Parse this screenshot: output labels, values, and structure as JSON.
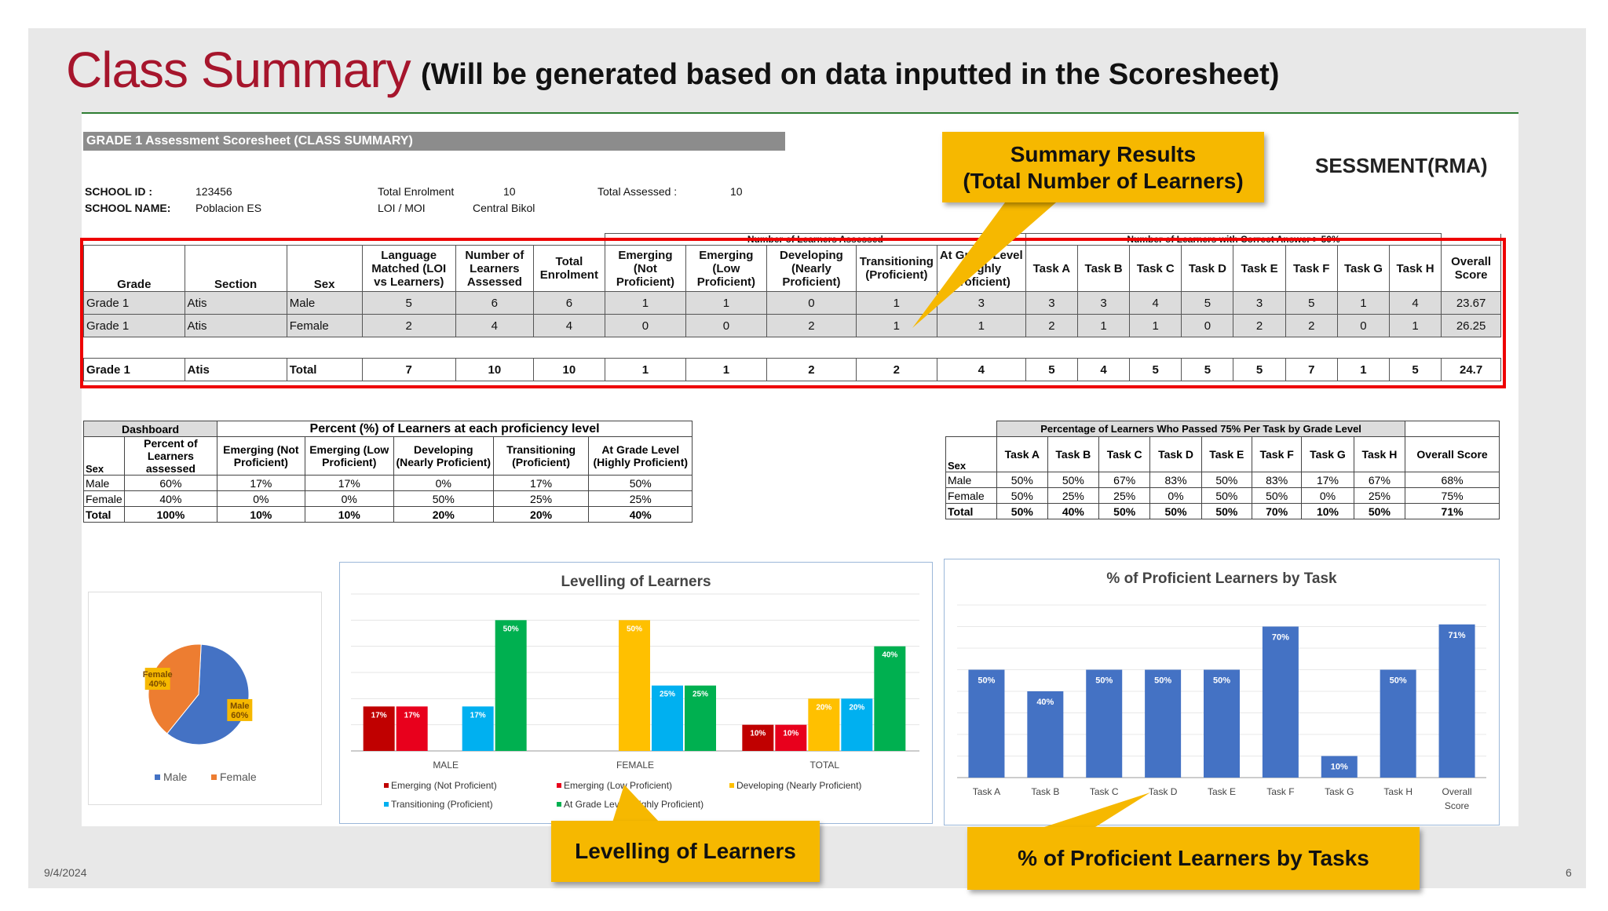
{
  "slide": {
    "title": "Class Summary",
    "subtitle": "(Will be generated based on data inputted in the Scoresheet)",
    "date": "9/4/2024",
    "page": "6"
  },
  "sheet": {
    "header": "GRADE 1 Assessment Scoresheet (CLASS SUMMARY)",
    "rma_title": "SESSMENT(RMA)",
    "school_id_label": "SCHOOL ID :",
    "school_id": "123456",
    "school_name_label": "SCHOOL NAME:",
    "school_name": "Poblacion ES",
    "enrolment_label": "Total Enrolment",
    "enrolment": "10",
    "loi_label": "LOI / MOI",
    "loi": "Central Bikol",
    "assessed_label": "Total Assessed :",
    "assessed": "10"
  },
  "main_table": {
    "group_assessed": "Number of Learners Assessed",
    "group_correct": "Number of Learners with Correct Answer > 50%",
    "headers": [
      "Grade",
      "Section",
      "Sex",
      "Language Matched (LOI vs Learners)",
      "Number of Learners Assessed",
      "Total Enrolment",
      "Emerging (Not Proficient)",
      "Emerging (Low Proficient)",
      "Developing (Nearly Proficient)",
      "Transitioning (Proficient)",
      "At Grade Level (Highly Proficient)",
      "Task A",
      "Task B",
      "Task C",
      "Task D",
      "Task E",
      "Task F",
      "Task G",
      "Task H",
      "Overall Score"
    ],
    "rows": [
      [
        "Grade 1",
        "Atis",
        "Male",
        "5",
        "6",
        "6",
        "1",
        "1",
        "0",
        "1",
        "3",
        "3",
        "3",
        "4",
        "5",
        "3",
        "5",
        "1",
        "4",
        "23.67"
      ],
      [
        "Grade 1",
        "Atis",
        "Female",
        "2",
        "4",
        "4",
        "0",
        "0",
        "2",
        "1",
        "1",
        "2",
        "1",
        "1",
        "0",
        "2",
        "2",
        "0",
        "1",
        "26.25"
      ]
    ],
    "total": [
      "Grade 1",
      "Atis",
      "Total",
      "7",
      "10",
      "10",
      "1",
      "1",
      "2",
      "2",
      "4",
      "5",
      "4",
      "5",
      "5",
      "5",
      "7",
      "1",
      "5",
      "24.7"
    ]
  },
  "dashboard": {
    "title": "Dashboard",
    "group": "Percent (%) of Learners at each proficiency level",
    "headers": [
      "Sex",
      "Percent of Learners assessed",
      "Emerging (Not Proficient)",
      "Emerging (Low Proficient)",
      "Developing (Nearly Proficient)",
      "Transitioning (Proficient)",
      "At Grade Level (Highly Proficient)"
    ],
    "rows": [
      [
        "Male",
        "60%",
        "17%",
        "17%",
        "0%",
        "17%",
        "50%"
      ],
      [
        "Female",
        "40%",
        "0%",
        "0%",
        "50%",
        "25%",
        "25%"
      ],
      [
        "Total",
        "100%",
        "10%",
        "10%",
        "20%",
        "20%",
        "40%"
      ]
    ]
  },
  "task_pct": {
    "title": "Percentage of Learners Who Passed 75% Per Task by Grade Level",
    "headers": [
      "Sex",
      "Task A",
      "Task B",
      "Task C",
      "Task D",
      "Task E",
      "Task F",
      "Task G",
      "Task H",
      "Overall Score"
    ],
    "rows": [
      [
        "Male",
        "50%",
        "50%",
        "67%",
        "83%",
        "50%",
        "83%",
        "17%",
        "67%",
        "68%"
      ],
      [
        "Female",
        "50%",
        "25%",
        "25%",
        "0%",
        "50%",
        "50%",
        "0%",
        "25%",
        "75%"
      ],
      [
        "Total",
        "50%",
        "40%",
        "50%",
        "50%",
        "50%",
        "70%",
        "10%",
        "50%",
        "71%"
      ]
    ]
  },
  "callouts": {
    "summary": "Summary Results\n(Total Number of Learners)",
    "levelling": "Levelling of Learners",
    "proficient": "% of Proficient Learners by Tasks"
  },
  "chart_data": [
    {
      "type": "pie",
      "categories": [
        "Male",
        "Female"
      ],
      "values": [
        60,
        40
      ],
      "labels": [
        "Male\n60%",
        "Female\n40%"
      ],
      "colors": [
        "#4472c4",
        "#ed7d31"
      ],
      "legend": "bottom"
    },
    {
      "type": "bar",
      "title": "Levelling of Learners",
      "categories": [
        "MALE",
        "FEMALE",
        "TOTAL"
      ],
      "series": [
        {
          "name": "Emerging (Not Proficient)",
          "values": [
            17,
            0,
            10
          ],
          "color": "#c00000"
        },
        {
          "name": "Emerging (Low Proficient)",
          "values": [
            17,
            0,
            10
          ],
          "color": "#e8001c"
        },
        {
          "name": "Developing (Nearly Proficient)",
          "values": [
            0,
            50,
            20
          ],
          "color": "#ffc000"
        },
        {
          "name": "Transitioning (Proficient)",
          "values": [
            17,
            25,
            20
          ],
          "color": "#00b0f0"
        },
        {
          "name": "At Grade Level (Highly Proficient)",
          "values": [
            50,
            25,
            40
          ],
          "color": "#00b050"
        }
      ],
      "labels": [
        [
          "17%",
          "",
          "10%"
        ],
        [
          "17%",
          "",
          "10%"
        ],
        [
          "",
          "50%",
          "20%"
        ],
        [
          "17%",
          "25%",
          "20%"
        ],
        [
          "50%",
          "25%",
          "40%"
        ]
      ],
      "legend": "bottom"
    },
    {
      "type": "bar",
      "title": "% of  Proficient Learners by Task",
      "categories": [
        "Task A",
        "Task B",
        "Task C",
        "Task D",
        "Task E",
        "Task F",
        "Task G",
        "Task H",
        "Overall\nScore"
      ],
      "values": [
        50,
        40,
        50,
        50,
        50,
        70,
        10,
        50,
        71
      ],
      "labels": [
        "50%",
        "40%",
        "50%",
        "50%",
        "50%",
        "70%",
        "10%",
        "50%",
        "71%"
      ],
      "color": "#4472c4"
    }
  ]
}
